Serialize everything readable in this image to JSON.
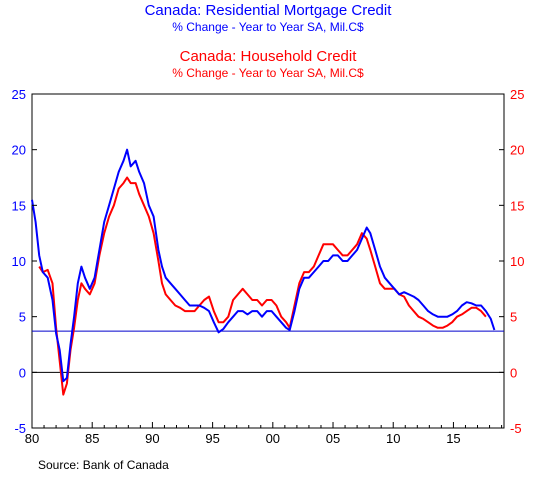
{
  "titles": {
    "series1_title": "Canada: Residential Mortgage Credit",
    "series1_subtitle": "% Change - Year to Year    SA, Mil.C$",
    "series2_title": "Canada: Household Credit",
    "series2_subtitle": "% Change - Year to Year    SA, Mil.C$"
  },
  "source": "Source:   Bank of Canada",
  "colors": {
    "series1": "#0000ff",
    "series2": "#ff0000",
    "zero_line": "#000000",
    "reference_line": "#0000cc",
    "left_axis": "#0000ff",
    "right_axis": "#ff0000"
  },
  "chart_data": {
    "type": "line",
    "title": "Canada: Residential Mortgage Credit / Canada: Household Credit",
    "subtitle": "% Change - Year to Year    SA, Mil.C$",
    "xlabel": "",
    "ylabel": "",
    "xlim": [
      1980,
      2019.2
    ],
    "ylim": [
      -5,
      25
    ],
    "x_ticks": [
      1980,
      1985,
      1990,
      1995,
      2000,
      2005,
      2010,
      2015
    ],
    "x_tick_labels": [
      "80",
      "85",
      "90",
      "95",
      "00",
      "05",
      "10",
      "15"
    ],
    "y_ticks": [
      -5,
      0,
      5,
      10,
      15,
      20,
      25
    ],
    "y_tick_labels_left": [
      "-5",
      "0",
      "5",
      "10",
      "15",
      "20",
      "25"
    ],
    "y_tick_labels_right": [
      "-5",
      "0",
      "5",
      "10",
      "15",
      "20",
      "25"
    ],
    "reference_line": 3.7,
    "grid": false,
    "legend": "none",
    "series": [
      {
        "name": "Canada: Residential Mortgage Credit",
        "points": [
          [
            1980.0,
            15.5
          ],
          [
            1980.3,
            13.5
          ],
          [
            1980.6,
            10.5
          ],
          [
            1980.9,
            9.0
          ],
          [
            1981.3,
            8.5
          ],
          [
            1981.7,
            6.5
          ],
          [
            1982.0,
            3.5
          ],
          [
            1982.3,
            2.0
          ],
          [
            1982.6,
            -0.8
          ],
          [
            1982.9,
            -0.5
          ],
          [
            1983.2,
            2.5
          ],
          [
            1983.5,
            5.0
          ],
          [
            1983.8,
            8.0
          ],
          [
            1984.1,
            9.5
          ],
          [
            1984.4,
            8.5
          ],
          [
            1984.8,
            7.5
          ],
          [
            1985.2,
            8.5
          ],
          [
            1985.6,
            11.0
          ],
          [
            1986.0,
            13.5
          ],
          [
            1986.4,
            15.0
          ],
          [
            1986.8,
            16.5
          ],
          [
            1987.2,
            18.0
          ],
          [
            1987.6,
            19.0
          ],
          [
            1987.9,
            20.0
          ],
          [
            1988.2,
            18.5
          ],
          [
            1988.6,
            19.0
          ],
          [
            1988.9,
            18.0
          ],
          [
            1989.3,
            17.0
          ],
          [
            1989.7,
            15.0
          ],
          [
            1990.1,
            14.0
          ],
          [
            1990.5,
            11.0
          ],
          [
            1990.8,
            9.5
          ],
          [
            1991.1,
            8.5
          ],
          [
            1991.5,
            8.0
          ],
          [
            1991.9,
            7.5
          ],
          [
            1992.3,
            7.0
          ],
          [
            1992.7,
            6.5
          ],
          [
            1993.1,
            6.0
          ],
          [
            1993.5,
            6.0
          ],
          [
            1993.9,
            6.0
          ],
          [
            1994.3,
            5.8
          ],
          [
            1994.7,
            5.5
          ],
          [
            1995.1,
            4.5
          ],
          [
            1995.5,
            3.6
          ],
          [
            1995.9,
            3.9
          ],
          [
            1996.3,
            4.5
          ],
          [
            1996.7,
            5.0
          ],
          [
            1997.1,
            5.5
          ],
          [
            1997.5,
            5.5
          ],
          [
            1997.9,
            5.2
          ],
          [
            1998.3,
            5.5
          ],
          [
            1998.7,
            5.5
          ],
          [
            1999.1,
            5.0
          ],
          [
            1999.5,
            5.5
          ],
          [
            1999.9,
            5.5
          ],
          [
            2000.3,
            5.0
          ],
          [
            2000.7,
            4.5
          ],
          [
            2001.1,
            4.0
          ],
          [
            2001.4,
            3.8
          ],
          [
            2001.8,
            5.5
          ],
          [
            2002.2,
            7.5
          ],
          [
            2002.6,
            8.5
          ],
          [
            2003.0,
            8.5
          ],
          [
            2003.4,
            9.0
          ],
          [
            2003.8,
            9.5
          ],
          [
            2004.2,
            10.0
          ],
          [
            2004.6,
            10.0
          ],
          [
            2005.0,
            10.5
          ],
          [
            2005.4,
            10.5
          ],
          [
            2005.8,
            10.0
          ],
          [
            2006.2,
            10.0
          ],
          [
            2006.6,
            10.5
          ],
          [
            2007.0,
            11.0
          ],
          [
            2007.4,
            12.0
          ],
          [
            2007.8,
            13.0
          ],
          [
            2008.1,
            12.5
          ],
          [
            2008.5,
            11.0
          ],
          [
            2008.9,
            9.5
          ],
          [
            2009.3,
            8.5
          ],
          [
            2009.7,
            8.0
          ],
          [
            2010.1,
            7.5
          ],
          [
            2010.5,
            7.0
          ],
          [
            2010.9,
            7.2
          ],
          [
            2011.3,
            7.0
          ],
          [
            2011.7,
            6.8
          ],
          [
            2012.1,
            6.5
          ],
          [
            2012.5,
            6.0
          ],
          [
            2012.9,
            5.5
          ],
          [
            2013.3,
            5.2
          ],
          [
            2013.7,
            5.0
          ],
          [
            2014.1,
            5.0
          ],
          [
            2014.5,
            5.0
          ],
          [
            2014.9,
            5.2
          ],
          [
            2015.3,
            5.5
          ],
          [
            2015.7,
            6.0
          ],
          [
            2016.1,
            6.3
          ],
          [
            2016.5,
            6.2
          ],
          [
            2016.9,
            6.0
          ],
          [
            2017.3,
            6.0
          ],
          [
            2017.7,
            5.5
          ],
          [
            2018.1,
            4.8
          ],
          [
            2018.4,
            3.8
          ]
        ]
      },
      {
        "name": "Canada: Household Credit",
        "points": [
          [
            1980.6,
            9.5
          ],
          [
            1980.9,
            9.0
          ],
          [
            1981.3,
            9.2
          ],
          [
            1981.7,
            8.0
          ],
          [
            1982.0,
            4.0
          ],
          [
            1982.3,
            1.0
          ],
          [
            1982.6,
            -2.0
          ],
          [
            1982.9,
            -1.0
          ],
          [
            1983.2,
            2.0
          ],
          [
            1983.5,
            4.0
          ],
          [
            1983.8,
            6.5
          ],
          [
            1984.1,
            8.0
          ],
          [
            1984.4,
            7.5
          ],
          [
            1984.8,
            7.0
          ],
          [
            1985.2,
            8.0
          ],
          [
            1985.6,
            10.5
          ],
          [
            1986.0,
            12.5
          ],
          [
            1986.4,
            14.0
          ],
          [
            1986.8,
            15.0
          ],
          [
            1987.2,
            16.5
          ],
          [
            1987.6,
            17.0
          ],
          [
            1987.9,
            17.5
          ],
          [
            1988.2,
            17.0
          ],
          [
            1988.6,
            17.0
          ],
          [
            1988.9,
            16.0
          ],
          [
            1989.3,
            15.0
          ],
          [
            1989.7,
            14.0
          ],
          [
            1990.1,
            12.5
          ],
          [
            1990.5,
            10.0
          ],
          [
            1990.8,
            8.0
          ],
          [
            1991.1,
            7.0
          ],
          [
            1991.5,
            6.5
          ],
          [
            1991.9,
            6.0
          ],
          [
            1992.3,
            5.8
          ],
          [
            1992.7,
            5.5
          ],
          [
            1993.1,
            5.5
          ],
          [
            1993.5,
            5.5
          ],
          [
            1993.9,
            6.0
          ],
          [
            1994.3,
            6.5
          ],
          [
            1994.7,
            6.8
          ],
          [
            1995.1,
            5.5
          ],
          [
            1995.5,
            4.5
          ],
          [
            1995.9,
            4.5
          ],
          [
            1996.3,
            5.0
          ],
          [
            1996.7,
            6.5
          ],
          [
            1997.1,
            7.0
          ],
          [
            1997.5,
            7.5
          ],
          [
            1997.9,
            7.0
          ],
          [
            1998.3,
            6.5
          ],
          [
            1998.7,
            6.5
          ],
          [
            1999.1,
            6.0
          ],
          [
            1999.5,
            6.5
          ],
          [
            1999.9,
            6.5
          ],
          [
            2000.3,
            6.0
          ],
          [
            2000.7,
            5.0
          ],
          [
            2001.1,
            4.5
          ],
          [
            2001.4,
            4.0
          ],
          [
            2001.8,
            6.0
          ],
          [
            2002.2,
            8.0
          ],
          [
            2002.6,
            9.0
          ],
          [
            2003.0,
            9.0
          ],
          [
            2003.4,
            9.5
          ],
          [
            2003.8,
            10.5
          ],
          [
            2004.2,
            11.5
          ],
          [
            2004.6,
            11.5
          ],
          [
            2005.0,
            11.5
          ],
          [
            2005.4,
            11.0
          ],
          [
            2005.8,
            10.5
          ],
          [
            2006.2,
            10.5
          ],
          [
            2006.6,
            11.0
          ],
          [
            2007.0,
            11.5
          ],
          [
            2007.4,
            12.5
          ],
          [
            2007.8,
            12.0
          ],
          [
            2008.1,
            11.0
          ],
          [
            2008.5,
            9.5
          ],
          [
            2008.9,
            8.0
          ],
          [
            2009.3,
            7.5
          ],
          [
            2009.7,
            7.5
          ],
          [
            2010.1,
            7.5
          ],
          [
            2010.5,
            7.0
          ],
          [
            2010.9,
            6.8
          ],
          [
            2011.3,
            6.0
          ],
          [
            2011.7,
            5.5
          ],
          [
            2012.1,
            5.0
          ],
          [
            2012.5,
            4.8
          ],
          [
            2012.9,
            4.5
          ],
          [
            2013.3,
            4.2
          ],
          [
            2013.7,
            4.0
          ],
          [
            2014.1,
            4.0
          ],
          [
            2014.5,
            4.2
          ],
          [
            2014.9,
            4.5
          ],
          [
            2015.3,
            5.0
          ],
          [
            2015.7,
            5.2
          ],
          [
            2016.1,
            5.5
          ],
          [
            2016.5,
            5.8
          ],
          [
            2016.9,
            5.8
          ],
          [
            2017.3,
            5.5
          ],
          [
            2017.7,
            5.0
          ]
        ]
      }
    ]
  }
}
